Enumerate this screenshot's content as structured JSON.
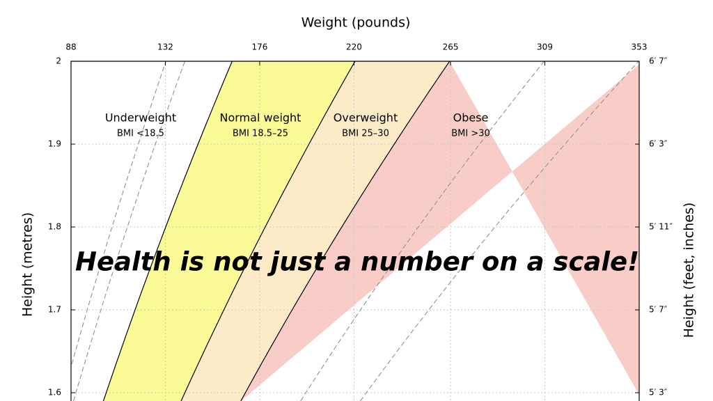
{
  "chart_data": {
    "type": "bmi",
    "x_label": "Weight (pounds)",
    "y_label": "Height (metres)",
    "y2_label": "Height (feet, inches)",
    "annotation": "Health is not just a number on a scale!",
    "xlim": [
      88,
      353
    ],
    "xticks": [
      88,
      132,
      176,
      220,
      265,
      309,
      353
    ],
    "ylim": [
      1.59,
      2
    ],
    "yticks": [
      1.6,
      1.7,
      1.8,
      1.9,
      2
    ],
    "y2lim": [
      1.59,
      2
    ],
    "y2ticks": [
      {
        "value": 2,
        "label": "6′ 7″"
      },
      {
        "value": 1.9,
        "label": "6′ 3″"
      },
      {
        "value": 1.8,
        "label": "5′ 11″"
      },
      {
        "value": 1.7,
        "label": "5′ 7″"
      },
      {
        "value": 1.6,
        "label": "5′ 3″"
      }
    ],
    "grid": true,
    "zones": [
      {
        "name": "Underweight",
        "range": "BMI <18.5",
        "color": "#ffffff",
        "upper_bmi": 18.5
      },
      {
        "name": "Normal weight",
        "range": "BMI 18.5–25",
        "color": "#fafa96",
        "upper_bmi": 25
      },
      {
        "name": "Overweight",
        "range": "BMI 25–30",
        "color": "#fdebc8",
        "upper_bmi": 30
      },
      {
        "name": "Obese",
        "range": "BMI >30",
        "color": "#f8cdc8"
      }
    ],
    "reference_lines": [
      15,
      16,
      35,
      40
    ]
  }
}
